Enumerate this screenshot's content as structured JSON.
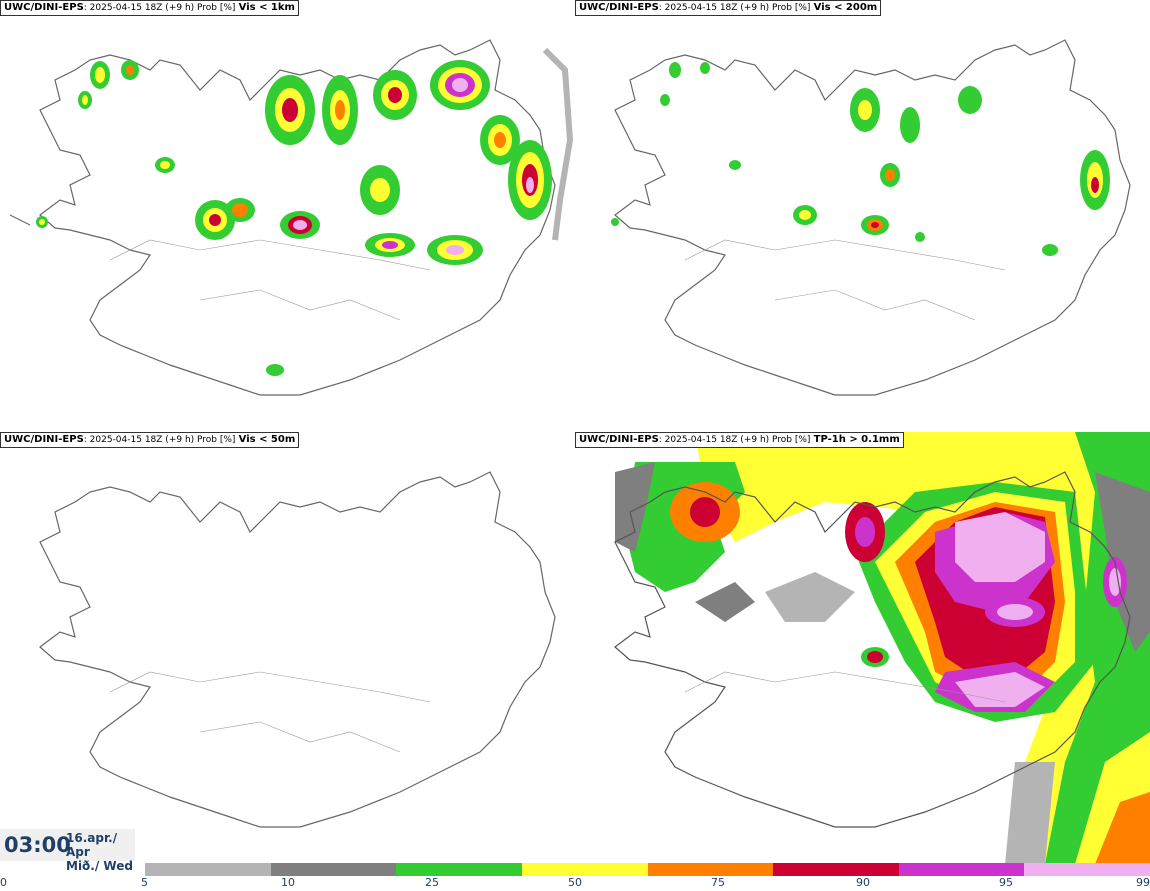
{
  "panels": [
    {
      "model": "UWC/DINI-EPS",
      "meta": ": 2025-04-15 18Z (+9 h) Prob [%]",
      "variable": "Vis < 1km"
    },
    {
      "model": "UWC/DINI-EPS",
      "meta": ": 2025-04-15 18Z (+9 h) Prob [%]",
      "variable": "Vis < 200m"
    },
    {
      "model": "UWC/DINI-EPS",
      "meta": ": 2025-04-15 18Z (+9 h) Prob [%]",
      "variable": "Vis < 50m"
    },
    {
      "model": "UWC/DINI-EPS",
      "meta": ": 2025-04-15 18Z (+9 h) Prob [%]",
      "variable": "TP-1h > 0.1mm"
    }
  ],
  "valid_time": {
    "time": "03:00",
    "date_line1": "16.apr./ Apr",
    "date_line2": "Mið./ Wed"
  },
  "colorbar": {
    "labels": [
      "0",
      "5",
      "10",
      "25",
      "50",
      "75",
      "90",
      "95",
      "99"
    ],
    "colors": [
      "#b4b4b4",
      "#7f7f7f",
      "#33cc33",
      "#ffff33",
      "#ff7f00",
      "#cc0033",
      "#cc33cc",
      "#f0b0f0"
    ]
  }
}
